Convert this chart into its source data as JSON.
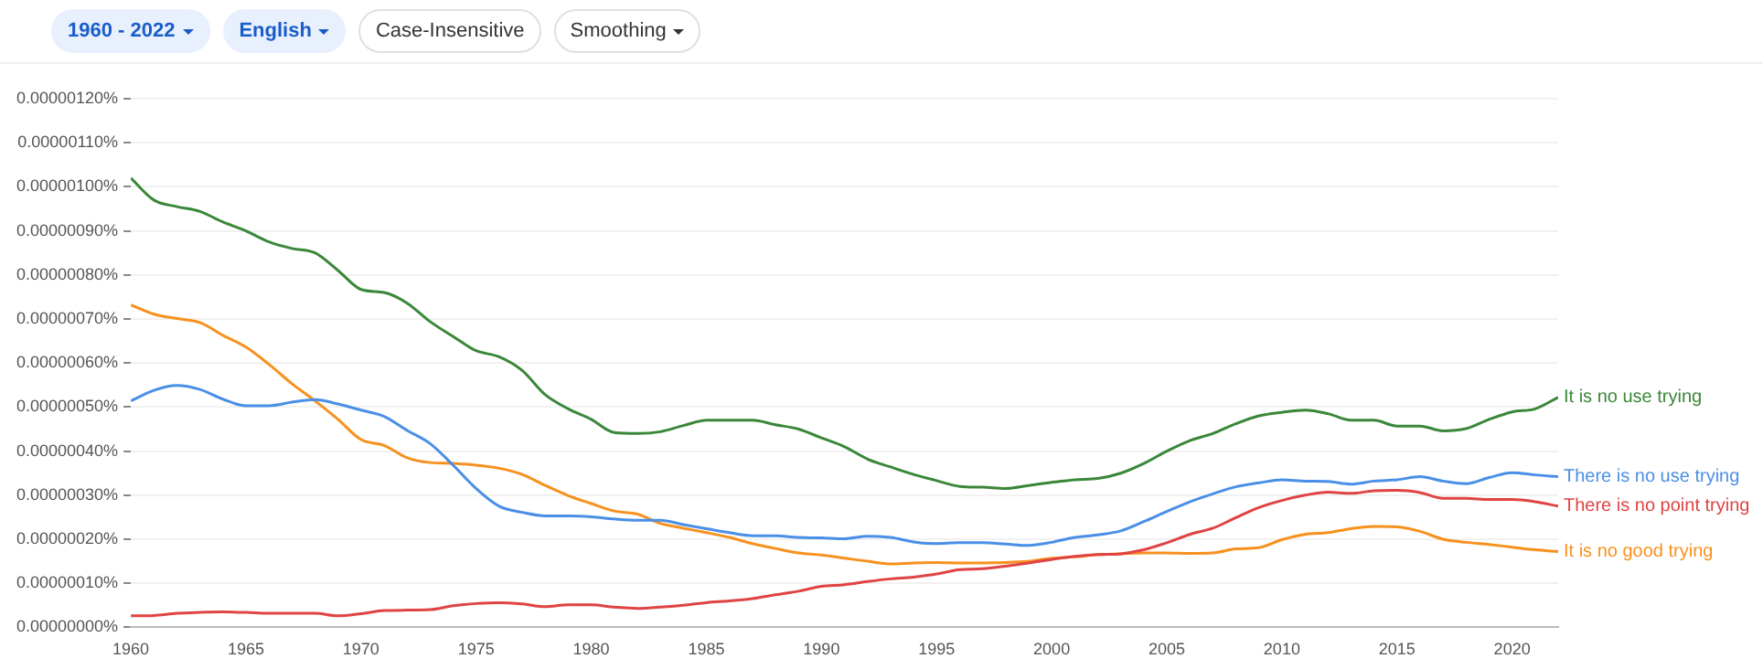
{
  "chart_data": {
    "type": "line",
    "annotations": [
      "1960 - 2022",
      "English",
      "Case-Insensitive",
      "Smoothing"
    ],
    "x": [
      1960,
      1961,
      1962,
      1963,
      1964,
      1965,
      1966,
      1967,
      1968,
      1969,
      1970,
      1971,
      1972,
      1973,
      1974,
      1975,
      1976,
      1977,
      1978,
      1979,
      1980,
      1981,
      1982,
      1983,
      1984,
      1985,
      1986,
      1987,
      1988,
      1989,
      1990,
      1991,
      1992,
      1993,
      1994,
      1995,
      1996,
      1997,
      1998,
      1999,
      2000,
      2001,
      2002,
      2003,
      2004,
      2005,
      2006,
      2007,
      2008,
      2009,
      2010,
      2011,
      2012,
      2013,
      2014,
      2015,
      2016,
      2017,
      2018,
      2019,
      2020,
      2021,
      2022
    ],
    "series": [
      {
        "name": "It is no use trying",
        "color": "#3a873a",
        "values": [
          1.02e-06,
          9.7e-07,
          9.55e-07,
          9.44e-07,
          9.2e-07,
          9e-07,
          8.75e-07,
          8.6e-07,
          8.5e-07,
          8.1e-07,
          7.67e-07,
          7.6e-07,
          7.36e-07,
          6.94e-07,
          6.6e-07,
          6.28e-07,
          6.14e-07,
          5.83e-07,
          5.28e-07,
          4.96e-07,
          4.72e-07,
          4.42e-07,
          4.4e-07,
          4.44e-07,
          4.58e-07,
          4.7e-07,
          4.7e-07,
          4.7e-07,
          4.6e-07,
          4.5e-07,
          4.3e-07,
          4.1e-07,
          3.82e-07,
          3.64e-07,
          3.47e-07,
          3.33e-07,
          3.2e-07,
          3.18e-07,
          3.15e-07,
          3.22e-07,
          3.29e-07,
          3.35e-07,
          3.38e-07,
          3.5e-07,
          3.72e-07,
          4e-07,
          4.24e-07,
          4.4e-07,
          4.62e-07,
          4.8e-07,
          4.88e-07,
          4.93e-07,
          4.85e-07,
          4.7e-07,
          4.7e-07,
          4.57e-07,
          4.57e-07,
          4.46e-07,
          4.51e-07,
          4.72e-07,
          4.89e-07,
          4.96e-07,
          5.22e-07
        ]
      },
      {
        "name": "There is no use trying",
        "color": "#4a8fe7",
        "values": [
          5.14e-07,
          5.38e-07,
          5.49e-07,
          5.4e-07,
          5.18e-07,
          5.03e-07,
          5.03e-07,
          5.11e-07,
          5.17e-07,
          5.07e-07,
          4.93e-07,
          4.79e-07,
          4.47e-07,
          4.17e-07,
          3.68e-07,
          3.15e-07,
          2.75e-07,
          2.61e-07,
          2.53e-07,
          2.53e-07,
          2.51e-07,
          2.46e-07,
          2.43e-07,
          2.43e-07,
          2.33e-07,
          2.24e-07,
          2.15e-07,
          2.08e-07,
          2.08e-07,
          2.04e-07,
          2.03e-07,
          2.01e-07,
          2.07e-07,
          2.04e-07,
          1.94e-07,
          1.9e-07,
          1.92e-07,
          1.92e-07,
          1.89e-07,
          1.86e-07,
          1.93e-07,
          2.04e-07,
          2.1e-07,
          2.19e-07,
          2.4e-07,
          2.63e-07,
          2.85e-07,
          3.03e-07,
          3.19e-07,
          3.28e-07,
          3.35e-07,
          3.32e-07,
          3.31e-07,
          3.25e-07,
          3.32e-07,
          3.35e-07,
          3.42e-07,
          3.32e-07,
          3.26e-07,
          3.4e-07,
          3.51e-07,
          3.46e-07,
          3.42e-07
        ]
      },
      {
        "name": "There is no point trying",
        "color": "#e04343",
        "values": [
          2.6e-08,
          2.7e-08,
          3.2e-08,
          3.4e-08,
          3.5e-08,
          3.4e-08,
          3.2e-08,
          3.2e-08,
          3.2e-08,
          2.6e-08,
          3.1e-08,
          3.8e-08,
          3.9e-08,
          4e-08,
          4.9e-08,
          5.4e-08,
          5.6e-08,
          5.3e-08,
          4.7e-08,
          5.1e-08,
          5.1e-08,
          4.6e-08,
          4.3e-08,
          4.6e-08,
          5e-08,
          5.6e-08,
          6e-08,
          6.5e-08,
          7.4e-08,
          8.2e-08,
          9.3e-08,
          9.7e-08,
          1.04e-07,
          1.1e-07,
          1.14e-07,
          1.21e-07,
          1.31e-07,
          1.33e-07,
          1.39e-07,
          1.46e-07,
          1.54e-07,
          1.61e-07,
          1.65e-07,
          1.67e-07,
          1.76e-07,
          1.92e-07,
          2.11e-07,
          2.25e-07,
          2.49e-07,
          2.72e-07,
          2.88e-07,
          3e-07,
          3.07e-07,
          3.04e-07,
          3.1e-07,
          3.11e-07,
          3.06e-07,
          2.93e-07,
          2.93e-07,
          2.9e-07,
          2.9e-07,
          2.85e-07,
          2.75e-07
        ]
      },
      {
        "name": "It is no good trying",
        "color": "#f7911e",
        "values": [
          7.32e-07,
          7.11e-07,
          7.01e-07,
          6.92e-07,
          6.63e-07,
          6.36e-07,
          5.97e-07,
          5.53e-07,
          5.14e-07,
          4.72e-07,
          4.26e-07,
          4.13e-07,
          3.85e-07,
          3.74e-07,
          3.72e-07,
          3.68e-07,
          3.61e-07,
          3.47e-07,
          3.22e-07,
          2.99e-07,
          2.81e-07,
          2.64e-07,
          2.57e-07,
          2.36e-07,
          2.25e-07,
          2.15e-07,
          2.04e-07,
          1.9e-07,
          1.79e-07,
          1.69e-07,
          1.64e-07,
          1.57e-07,
          1.5e-07,
          1.44e-07,
          1.46e-07,
          1.47e-07,
          1.46e-07,
          1.46e-07,
          1.47e-07,
          1.5e-07,
          1.57e-07,
          1.6e-07,
          1.65e-07,
          1.67e-07,
          1.69e-07,
          1.69e-07,
          1.68e-07,
          1.69e-07,
          1.78e-07,
          1.81e-07,
          1.99e-07,
          2.11e-07,
          2.15e-07,
          2.24e-07,
          2.29e-07,
          2.28e-07,
          2.18e-07,
          2e-07,
          1.93e-07,
          1.88e-07,
          1.82e-07,
          1.76e-07,
          1.72e-07
        ]
      }
    ],
    "xlim": [
      1960,
      2022
    ],
    "xticks": [
      1960,
      1965,
      1970,
      1975,
      1980,
      1985,
      1990,
      1995,
      2000,
      2005,
      2010,
      2015,
      2020
    ],
    "ylim": [
      0,
      1.2e-06
    ],
    "yticks": [
      {
        "value": 0,
        "label": "0.00000000%"
      },
      {
        "value": 1e-07,
        "label": "0.00000010%"
      },
      {
        "value": 2e-07,
        "label": "0.00000020%"
      },
      {
        "value": 3e-07,
        "label": "0.00000030%"
      },
      {
        "value": 4e-07,
        "label": "0.00000040%"
      },
      {
        "value": 5e-07,
        "label": "0.00000050%"
      },
      {
        "value": 6e-07,
        "label": "0.00000060%"
      },
      {
        "value": 7e-07,
        "label": "0.00000070%"
      },
      {
        "value": 8e-07,
        "label": "0.00000080%"
      },
      {
        "value": 9e-07,
        "label": "0.00000090%"
      },
      {
        "value": 1e-06,
        "label": "0.00000100%"
      },
      {
        "value": 1.1e-06,
        "label": "0.00000110%"
      },
      {
        "value": 1.2e-06,
        "label": "0.00000120%"
      }
    ],
    "grid": "y",
    "legend": false
  }
}
